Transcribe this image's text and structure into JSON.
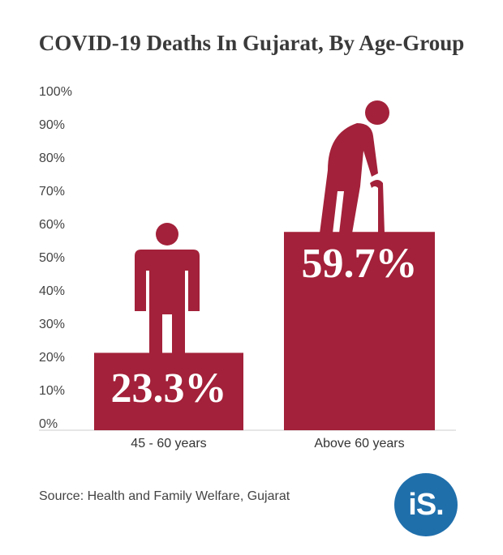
{
  "chart_data": {
    "type": "bar",
    "title": "COVID-19 Deaths In Gujarat, By Age-Group",
    "categories": [
      "45 - 60 years",
      "Above 60 years"
    ],
    "values": [
      23.3,
      59.7
    ],
    "data_labels": [
      "23.3%",
      "59.7%"
    ],
    "ylim": [
      0,
      100
    ],
    "yticks": [
      "0%",
      "10%",
      "20%",
      "30%",
      "40%",
      "50%",
      "60%",
      "70%",
      "80%",
      "90%",
      "100%"
    ],
    "grid": false,
    "bar_color": "#a3213a",
    "icons": [
      "adult-person-icon",
      "elderly-person-with-cane-icon"
    ],
    "source": "Source: Health and Family Welfare, Gujarat"
  },
  "logo": {
    "text": "iS.",
    "color": "#1f6fab"
  }
}
